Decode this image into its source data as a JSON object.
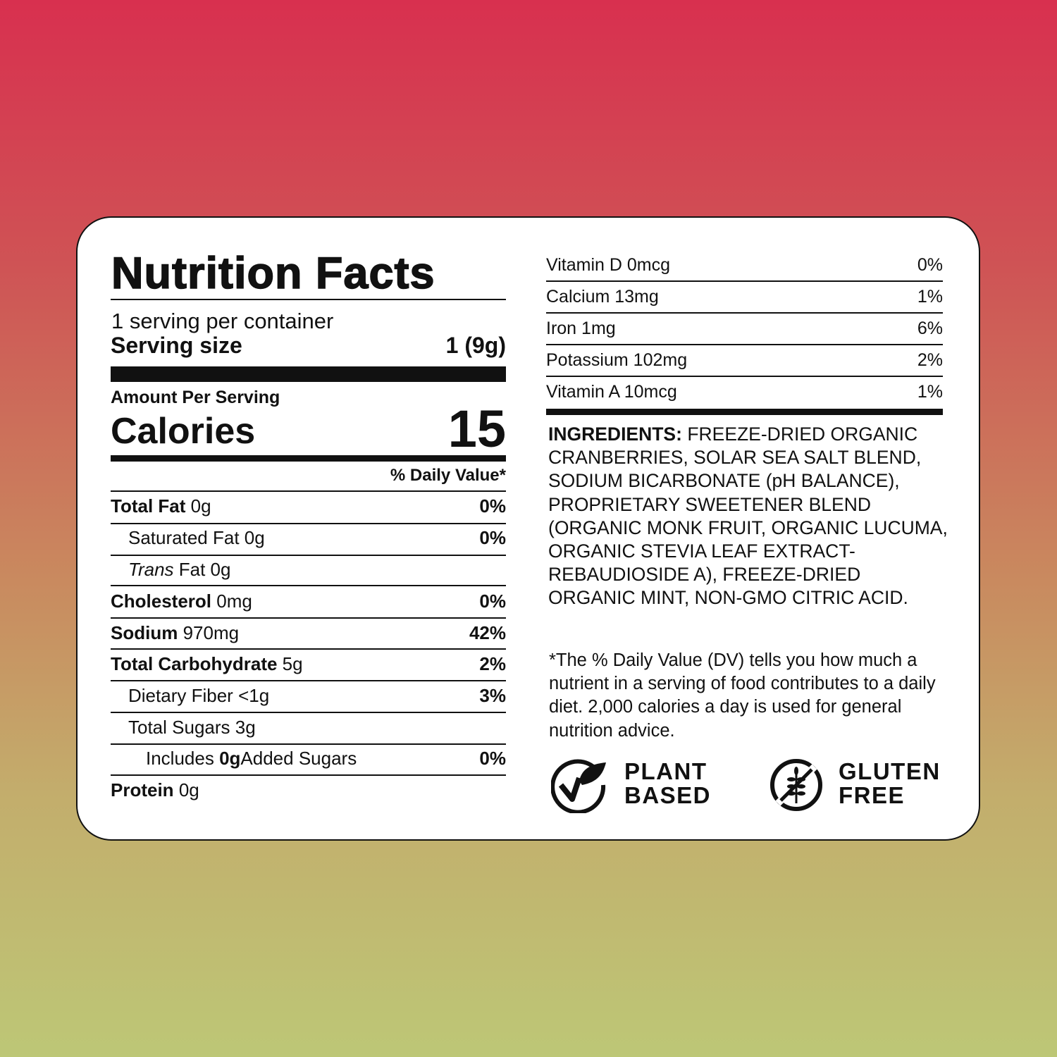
{
  "label": {
    "title": "Nutrition Facts",
    "servings_per_container": "1 serving per container",
    "serving_size_label": "Serving size",
    "serving_size_value": "1 (9g)",
    "amount_per_serving": "Amount Per Serving",
    "calories_label": "Calories",
    "calories_value": "15",
    "daily_value_header": "% Daily Value*",
    "nutrients": [
      {
        "name": "Total Fat",
        "amount": "0g",
        "dv": "0%"
      },
      {
        "name": "Saturated Fat",
        "amount": "0g",
        "dv": "0%"
      },
      {
        "name": "Trans",
        "suffix": "Fat 0g",
        "dv": ""
      },
      {
        "name": "Cholesterol",
        "amount": "0mg",
        "dv": "0%"
      },
      {
        "name": "Sodium",
        "amount": "970mg",
        "dv": "42%"
      },
      {
        "name": "Total Carbohydrate",
        "amount": "5g",
        "dv": "2%"
      },
      {
        "name": "Dietary Fiber",
        "amount": "<1g",
        "dv": "3%"
      },
      {
        "name": "Total Sugars",
        "amount": "3g",
        "dv": ""
      },
      {
        "name": "Includes",
        "amount": "0g",
        "suffix": "Added Sugars",
        "dv": "0%"
      },
      {
        "name": "Protein",
        "amount": "0g",
        "dv": ""
      }
    ],
    "vitamins": [
      {
        "name": "Vitamin D",
        "amount": "0mcg",
        "dv": "0%"
      },
      {
        "name": "Calcium",
        "amount": "13mg",
        "dv": "1%"
      },
      {
        "name": "Iron",
        "amount": "1mg",
        "dv": "6%"
      },
      {
        "name": "Potassium",
        "amount": "102mg",
        "dv": "2%"
      },
      {
        "name": "Vitamin A",
        "amount": "10mcg",
        "dv": "1%"
      }
    ],
    "ingredients_label": "INGREDIENTS:",
    "ingredients_text": "FREEZE-DRIED ORGANIC CRANBERRIES, SOLAR SEA SALT BLEND, SODIUM BICARBONATE (pH BALANCE), PROPRIETARY SWEETENER BLEND (ORGANIC MONK FRUIT, ORGANIC LUCUMA, ORGANIC STEVIA LEAF EXTRACT-REBAUDIOSIDE A), FREEZE-DRIED ORGANIC MINT, NON-GMO CITRIC ACID.",
    "footnote": "*The % Daily Value (DV) tells you how much a nutrient in a serving of food contributes to a daily diet. 2,000 calories a day is used for general nutrition advice.",
    "badges": [
      {
        "icon": "plant-based-check-leaf-icon",
        "line1": "PLANT",
        "line2": "BASED"
      },
      {
        "icon": "gluten-free-wheat-icon",
        "line1": "GLUTEN",
        "line2": "FREE"
      }
    ]
  },
  "colors": {
    "gradient_top": "#d8304f",
    "gradient_bottom": "#bdc776"
  }
}
